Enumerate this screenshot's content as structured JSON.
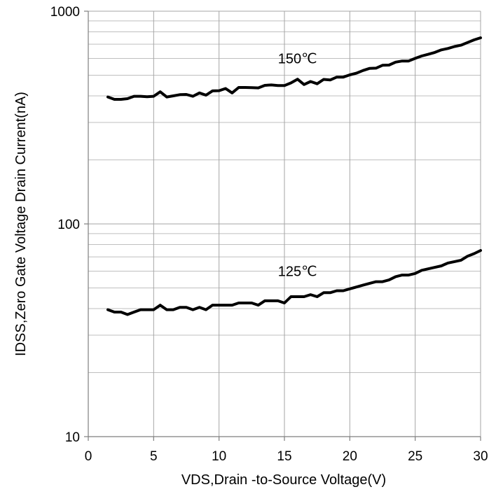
{
  "chart_data": {
    "type": "line",
    "title": "",
    "xlabel": "VDS,Drain -to-Source Voltage(V)",
    "ylabel": "IDSS,Zero Gate Voltage Drain Current(nA)",
    "x_scale": "linear",
    "y_scale": "log",
    "xlim": [
      0,
      30
    ],
    "ylim": [
      10,
      1000
    ],
    "x_ticks": [
      0,
      5,
      10,
      15,
      20,
      25,
      30
    ],
    "x_tick_labels": [
      "0",
      "5",
      "10",
      "15",
      "20",
      "25",
      "30"
    ],
    "y_ticks": [
      10,
      100,
      1000
    ],
    "y_tick_labels": [
      "10",
      "100",
      "1000"
    ],
    "grid": true,
    "series": [
      {
        "name": "150℃",
        "x": [
          1.5,
          2,
          2.5,
          3,
          3.5,
          4,
          4.5,
          5,
          5.5,
          6,
          6.5,
          7,
          7.5,
          8,
          8.5,
          9,
          9.5,
          10,
          10.5,
          11,
          11.5,
          12,
          12.5,
          13,
          13.5,
          14,
          14.5,
          15,
          15.5,
          16,
          16.5,
          17,
          17.5,
          18,
          18.5,
          19,
          19.5,
          20,
          20.5,
          21,
          21.5,
          22,
          22.5,
          23,
          23.5,
          24,
          24.5,
          25,
          25.5,
          26,
          26.5,
          27,
          27.5,
          28,
          28.5,
          29,
          29.5,
          30
        ],
        "y": [
          395,
          385,
          385,
          388,
          398,
          398,
          396,
          398,
          418,
          395,
          400,
          405,
          406,
          398,
          413,
          403,
          422,
          423,
          433,
          413,
          438,
          438,
          437,
          436,
          448,
          450,
          447,
          447,
          460,
          479,
          452,
          467,
          456,
          478,
          475,
          490,
          490,
          502,
          511,
          526,
          538,
          540,
          557,
          558,
          576,
          583,
          583,
          600,
          616,
          627,
          640,
          658,
          668,
          682,
          692,
          712,
          733,
          750
        ]
      },
      {
        "name": "125℃",
        "x": [
          1.5,
          2,
          2.5,
          3,
          3.5,
          4,
          4.5,
          5,
          5.5,
          6,
          6.5,
          7,
          7.5,
          8,
          8.5,
          9,
          9.5,
          10,
          10.5,
          11,
          11.5,
          12,
          12.5,
          13,
          13.5,
          14,
          14.5,
          15,
          15.5,
          16,
          16.5,
          17,
          17.5,
          18,
          18.5,
          19,
          19.5,
          20,
          20.5,
          21,
          21.5,
          22,
          22.5,
          23,
          23.5,
          24,
          24.5,
          25,
          25.5,
          26,
          26.5,
          27,
          27.5,
          28,
          28.5,
          29,
          29.5,
          30
        ],
        "y": [
          39.5,
          38.5,
          38.5,
          37.5,
          38.5,
          39.5,
          39.5,
          39.5,
          41.5,
          39.5,
          39.5,
          40.5,
          40.5,
          39.5,
          40.5,
          39.5,
          41.5,
          41.5,
          41.5,
          41.5,
          42.5,
          42.5,
          42.5,
          41.5,
          43.5,
          43.5,
          43.5,
          42.5,
          45.5,
          45.5,
          45.5,
          46.5,
          45.5,
          47.5,
          47.5,
          48.5,
          48.5,
          49.5,
          50.5,
          51.5,
          52.5,
          53.5,
          53.5,
          54.5,
          56.5,
          57.5,
          57.5,
          58.5,
          60.5,
          61.5,
          62.5,
          63.5,
          65.5,
          66.5,
          67.5,
          70.5,
          72.5,
          75
        ]
      }
    ],
    "annotations": [
      {
        "text": "150℃",
        "x": 16,
        "y": 600
      },
      {
        "text": "125℃",
        "x": 16,
        "y": 60
      }
    ],
    "colors": {
      "series": "#000000",
      "grid": "#a6a6a6",
      "axis": "#7f7f7f"
    }
  }
}
